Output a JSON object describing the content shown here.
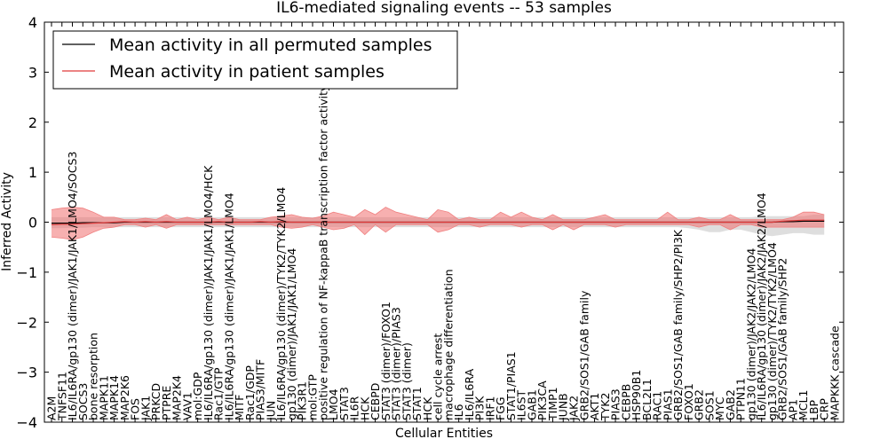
{
  "chart_data": {
    "type": "line",
    "title": "IL6-mediated signaling events -- 53 samples",
    "xlabel": "Cellular Entities",
    "ylabel": "Inferred Activity",
    "ylim": [
      -4,
      4
    ],
    "yticks": [
      -4,
      -3,
      -2,
      -1,
      0,
      1,
      2,
      3,
      4
    ],
    "ytick_labels": [
      "−4",
      "−3",
      "−2",
      "−1",
      "0",
      "1",
      "2",
      "3",
      "4"
    ],
    "legend_position": "top-left",
    "categories": [
      "A2M",
      "TNFSF11",
      "IL6/IL6RA/gp130 (dimer)/JAK1/JAK1/LMO4/SOCS3",
      "SOCS3",
      "bone resorption",
      "MAPK11",
      "MAPK14",
      "MAP2K6",
      "FOS",
      "JAK1",
      "PRKCD",
      "PTPRE",
      "MAP2K4",
      "VAV1",
      "mol:GDP",
      "IL6/IL6RA/gp130 (dimer)/JAK1/JAK1/LMO4/HCK",
      "Rac1/GTP",
      "IL6/IL6RA/gp130 (dimer)/JAK1/JAK1/LMO4",
      "MITF",
      "Rac1/GDP",
      "PIAS3/MITF",
      "JUN",
      "IL6/IL6RA/gp130 (dimer)/TYK2/TYK2/LMO4",
      "gp130 (dimer)/JAK1/JAK1/LMO4",
      "PIK3R1",
      "mol:GTP",
      "positive regulation of NF-kappaB transcription factor activity",
      "LMO4",
      "STAT3",
      "IL6R",
      "HCK",
      "CEBPD",
      "STAT3 (dimer)/FOXO1",
      "STAT3 (dimer)/PIAS3",
      "STAT3 (dimer)",
      "STAT1",
      "HCK",
      "cell cycle arrest",
      "macrophage differentiation",
      "IL6",
      "IL6/IL6RA",
      "PI3K",
      "IRF1",
      "FGG",
      "STAT1/PIAS1",
      "IL6ST",
      "GAB1",
      "PIK3CA",
      "TIMP1",
      "JUNB",
      "JAK2",
      "GRB2/SOS1/GAB family",
      "AKT1",
      "TYK2",
      "PIAS3",
      "CEBPB",
      "HSP90B1",
      "BCL2L1",
      "RAC1",
      "PIAS1",
      "GRB2/SOS1/GAB family/SHP2/PI3K",
      "FOXO1",
      "GRB2",
      "SOS1",
      "MYC",
      "GAB2",
      "PTPN11",
      "gp130 (dimer)/JAK2/JAK2/LMO4",
      "IL6/IL6RA/gp130 (dimer)/JAK2/JAK2/LMO4",
      "gp130 (dimer)/TYK2/TYK2/LMO4",
      "GRB2/SOS1/GAB family/SHP2",
      "AP1",
      "MCL1",
      "LBP",
      "CRP",
      "MAPKKK cascade"
    ],
    "series": [
      {
        "name": "Mean activity in all permuted samples",
        "color": "#000000",
        "mean": [
          -0.02,
          -0.02,
          -0.02,
          -0.01,
          -0.01,
          -0.01,
          -0.01,
          0.0,
          0.0,
          0.0,
          0.0,
          0.0,
          0.0,
          0.0,
          0.0,
          0.0,
          0.0,
          0.0,
          0.0,
          0.0,
          0.0,
          0.0,
          0.0,
          0.0,
          0.0,
          0.0,
          0.0,
          0.0,
          0.0,
          0.0,
          0.0,
          0.0,
          0.0,
          0.0,
          0.0,
          0.0,
          0.0,
          0.0,
          0.0,
          0.0,
          0.0,
          0.0,
          0.0,
          0.0,
          0.0,
          0.0,
          0.0,
          0.0,
          0.0,
          0.0,
          0.0,
          0.0,
          0.0,
          0.0,
          0.0,
          0.0,
          0.0,
          0.0,
          0.0,
          0.0,
          0.0,
          0.0,
          0.0,
          0.0,
          0.0,
          0.0,
          0.0,
          0.0,
          0.0,
          0.0,
          0.01,
          0.01,
          0.02,
          0.02,
          0.02
        ],
        "lower": [
          -0.12,
          -0.12,
          -0.11,
          -0.11,
          -0.1,
          -0.1,
          -0.1,
          -0.1,
          -0.1,
          -0.1,
          -0.1,
          -0.1,
          -0.1,
          -0.1,
          -0.1,
          -0.1,
          -0.1,
          -0.1,
          -0.1,
          -0.1,
          -0.1,
          -0.1,
          -0.1,
          -0.1,
          -0.1,
          -0.1,
          -0.1,
          -0.1,
          -0.1,
          -0.1,
          -0.1,
          -0.1,
          -0.1,
          -0.1,
          -0.1,
          -0.1,
          -0.1,
          -0.1,
          -0.1,
          -0.1,
          -0.1,
          -0.1,
          -0.1,
          -0.1,
          -0.1,
          -0.1,
          -0.1,
          -0.1,
          -0.1,
          -0.1,
          -0.1,
          -0.1,
          -0.1,
          -0.1,
          -0.1,
          -0.1,
          -0.1,
          -0.1,
          -0.1,
          -0.1,
          -0.1,
          -0.12,
          -0.15,
          -0.2,
          -0.2,
          -0.15,
          -0.15,
          -0.2,
          -0.25,
          -0.28,
          -0.25,
          -0.22,
          -0.22,
          -0.25,
          -0.25
        ],
        "upper": [
          0.1,
          0.1,
          0.1,
          0.1,
          0.1,
          0.1,
          0.1,
          0.1,
          0.1,
          0.1,
          0.1,
          0.1,
          0.1,
          0.1,
          0.1,
          0.1,
          0.1,
          0.1,
          0.1,
          0.1,
          0.1,
          0.1,
          0.1,
          0.1,
          0.1,
          0.1,
          0.1,
          0.1,
          0.1,
          0.1,
          0.1,
          0.1,
          0.1,
          0.1,
          0.1,
          0.1,
          0.1,
          0.1,
          0.1,
          0.1,
          0.1,
          0.1,
          0.1,
          0.1,
          0.1,
          0.1,
          0.1,
          0.1,
          0.1,
          0.1,
          0.1,
          0.1,
          0.1,
          0.1,
          0.1,
          0.1,
          0.1,
          0.1,
          0.1,
          0.1,
          0.1,
          0.1,
          0.1,
          0.1,
          0.1,
          0.1,
          0.1,
          0.1,
          0.12,
          0.12,
          0.12,
          0.12,
          0.12,
          0.15,
          0.15
        ]
      },
      {
        "name": "Mean activity in patient samples",
        "color": "#e03a3a",
        "mean": [
          -0.05,
          -0.04,
          -0.04,
          -0.03,
          -0.02,
          -0.01,
          0.0,
          0.01,
          0.0,
          0.01,
          0.0,
          0.01,
          0.0,
          0.0,
          0.0,
          0.0,
          0.01,
          0.0,
          0.0,
          0.0,
          0.01,
          0.0,
          0.01,
          0.0,
          0.0,
          0.0,
          0.0,
          0.0,
          0.0,
          0.0,
          0.0,
          0.0,
          0.0,
          0.0,
          0.0,
          0.0,
          0.0,
          0.0,
          0.0,
          0.0,
          0.0,
          0.0,
          0.0,
          0.0,
          0.0,
          0.0,
          0.0,
          0.0,
          0.0,
          0.0,
          0.0,
          0.0,
          0.0,
          0.0,
          0.0,
          0.0,
          0.0,
          0.0,
          0.0,
          0.0,
          0.0,
          0.0,
          0.0,
          0.0,
          0.0,
          0.0,
          0.0,
          0.0,
          0.0,
          0.0,
          0.02,
          0.03,
          0.04,
          0.04,
          0.04
        ],
        "lower": [
          -0.3,
          -0.32,
          -0.35,
          -0.3,
          -0.2,
          -0.12,
          -0.1,
          -0.05,
          -0.05,
          -0.1,
          -0.05,
          -0.12,
          -0.05,
          -0.05,
          -0.05,
          -0.05,
          -0.05,
          -0.05,
          -0.05,
          -0.05,
          -0.05,
          -0.05,
          -0.1,
          -0.12,
          -0.1,
          -0.05,
          -0.1,
          -0.15,
          -0.12,
          -0.05,
          -0.25,
          -0.05,
          -0.2,
          -0.05,
          -0.05,
          -0.05,
          -0.05,
          -0.2,
          -0.15,
          -0.05,
          -0.05,
          -0.1,
          -0.05,
          -0.05,
          -0.05,
          -0.1,
          -0.05,
          -0.05,
          -0.15,
          -0.05,
          -0.15,
          -0.05,
          -0.05,
          -0.05,
          -0.1,
          -0.05,
          -0.05,
          -0.05,
          -0.05,
          -0.05,
          -0.05,
          -0.05,
          -0.1,
          -0.05,
          -0.05,
          -0.15,
          -0.05,
          -0.05,
          -0.1,
          -0.1,
          -0.1,
          -0.1,
          -0.1,
          -0.1,
          -0.1
        ],
        "upper": [
          0.25,
          0.28,
          0.3,
          0.28,
          0.2,
          0.1,
          0.1,
          0.05,
          0.05,
          0.08,
          0.05,
          0.15,
          0.05,
          0.1,
          0.05,
          0.1,
          0.05,
          0.1,
          0.05,
          0.05,
          0.05,
          0.1,
          0.12,
          0.15,
          0.1,
          0.08,
          0.12,
          0.2,
          0.15,
          0.1,
          0.25,
          0.15,
          0.3,
          0.2,
          0.15,
          0.1,
          0.05,
          0.25,
          0.2,
          0.05,
          0.1,
          0.05,
          0.05,
          0.2,
          0.1,
          0.2,
          0.1,
          0.05,
          0.15,
          0.05,
          0.05,
          0.05,
          0.1,
          0.15,
          0.05,
          0.05,
          0.05,
          0.05,
          0.05,
          0.2,
          0.05,
          0.05,
          0.1,
          0.05,
          0.05,
          0.15,
          0.05,
          0.05,
          0.05,
          0.05,
          0.05,
          0.1,
          0.2,
          0.2,
          0.15
        ]
      }
    ]
  }
}
